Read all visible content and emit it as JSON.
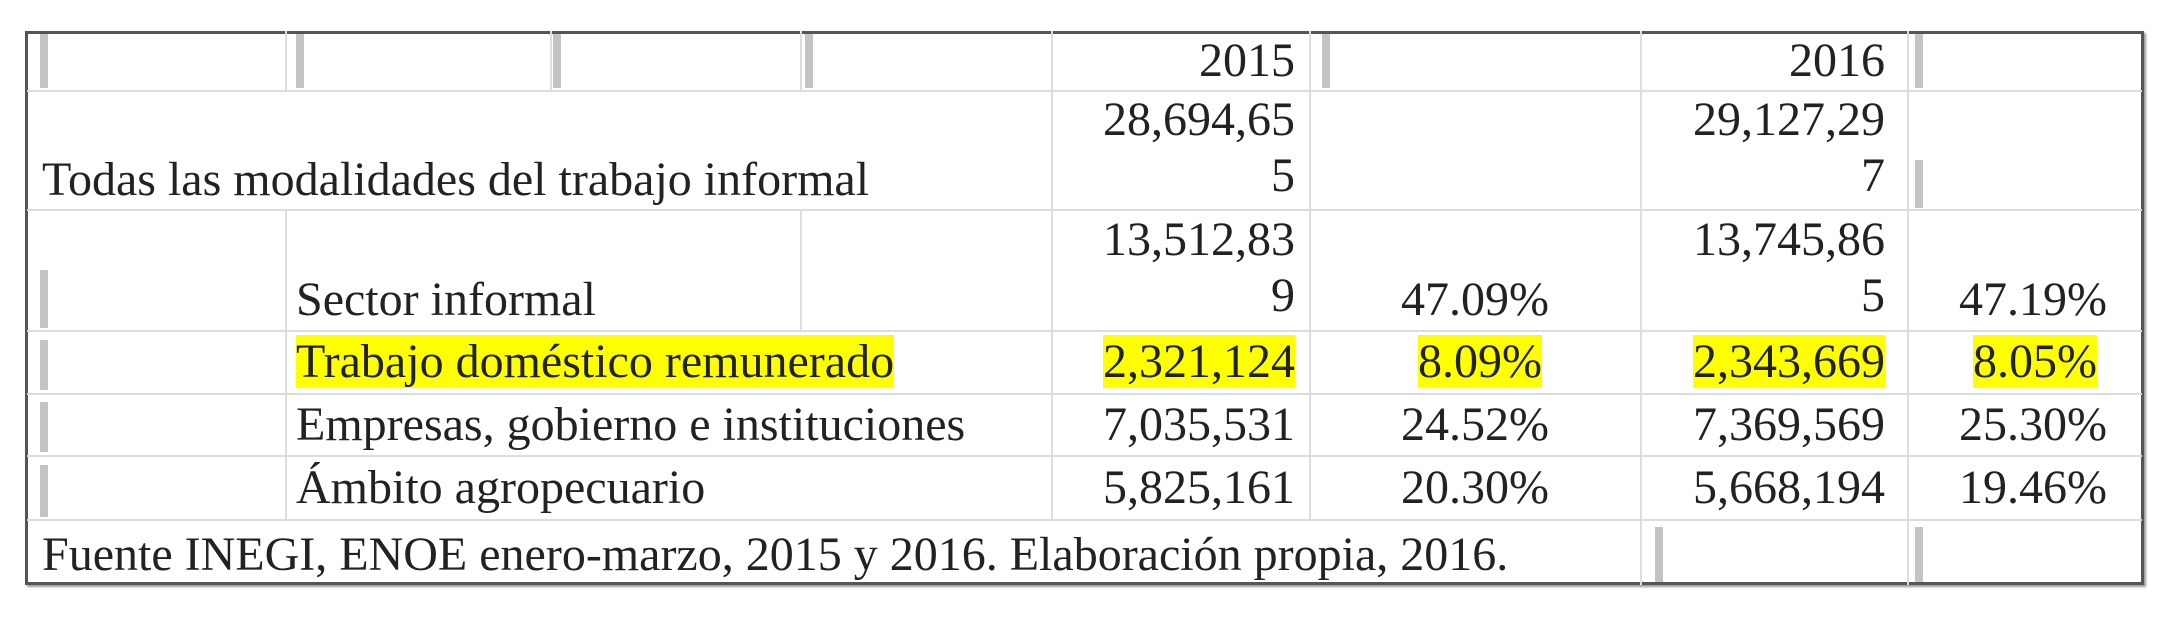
{
  "header": {
    "year_2015": "2015",
    "year_2016": "2016"
  },
  "rows": [
    {
      "label": "Todas las modalidades del trabajo informal",
      "v2015": "28,694,655",
      "p2015": "",
      "v2016": "29,127,297",
      "p2016": ""
    },
    {
      "label": "Sector informal",
      "v2015": "13,512,839",
      "p2015": "47.09%",
      "v2016": "13,745,865",
      "p2016": "47.19%"
    },
    {
      "label": "Trabajo doméstico remunerado",
      "v2015": "2,321,124",
      "p2015": "8.09%",
      "v2016": "2,343,669",
      "p2016": "8.05%",
      "highlighted": true
    },
    {
      "label": "Empresas, gobierno e instituciones",
      "v2015": "7,035,531",
      "p2015": "24.52%",
      "v2016": "7,369,569",
      "p2016": "25.30%"
    },
    {
      "label": "Ámbito agropecuario",
      "v2015": "5,825,161",
      "p2015": "20.30%",
      "v2016": "5,668,194",
      "p2016": "19.46%"
    }
  ],
  "footer": "Fuente INEGI, ENOE enero-marzo, 2015 y 2016. Elaboración propia, 2016.",
  "colors": {
    "highlight": "#ffff00",
    "border": "#555555",
    "gridline": "#dddddd"
  }
}
